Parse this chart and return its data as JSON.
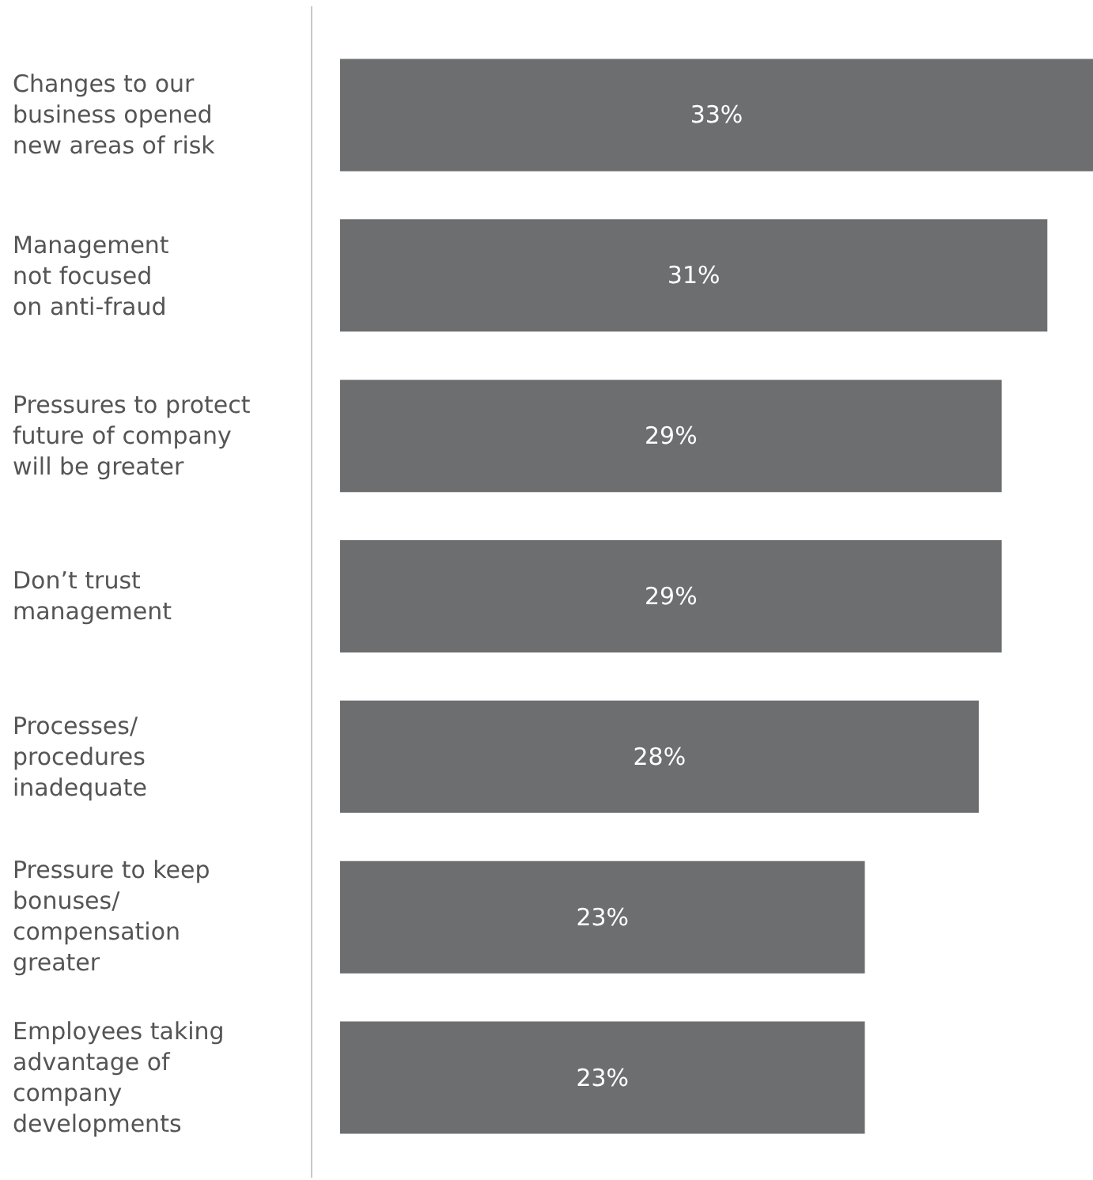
{
  "chart_data": {
    "type": "bar",
    "orientation": "horizontal",
    "categories": [
      "Changes to our\nbusiness opened\nnew areas of risk",
      "Management\nnot focused\non anti-fraud",
      "Pressures to protect\nfuture of company\nwill be greater",
      "Don’t trust\nmanagement",
      "Processes/\nprocedures\ninadequate",
      "Pressure to keep\nbonuses/\ncompensation\ngreater",
      "Employees taking\nadvantage of\ncompany\ndevelopments"
    ],
    "values": [
      33,
      31,
      29,
      29,
      28,
      23,
      23
    ],
    "value_labels": [
      "33%",
      "31%",
      "29%",
      "29%",
      "28%",
      "23%",
      "23%"
    ],
    "color": "#6d6e70",
    "xlim": [
      0,
      33
    ],
    "tick_labels": false
  }
}
